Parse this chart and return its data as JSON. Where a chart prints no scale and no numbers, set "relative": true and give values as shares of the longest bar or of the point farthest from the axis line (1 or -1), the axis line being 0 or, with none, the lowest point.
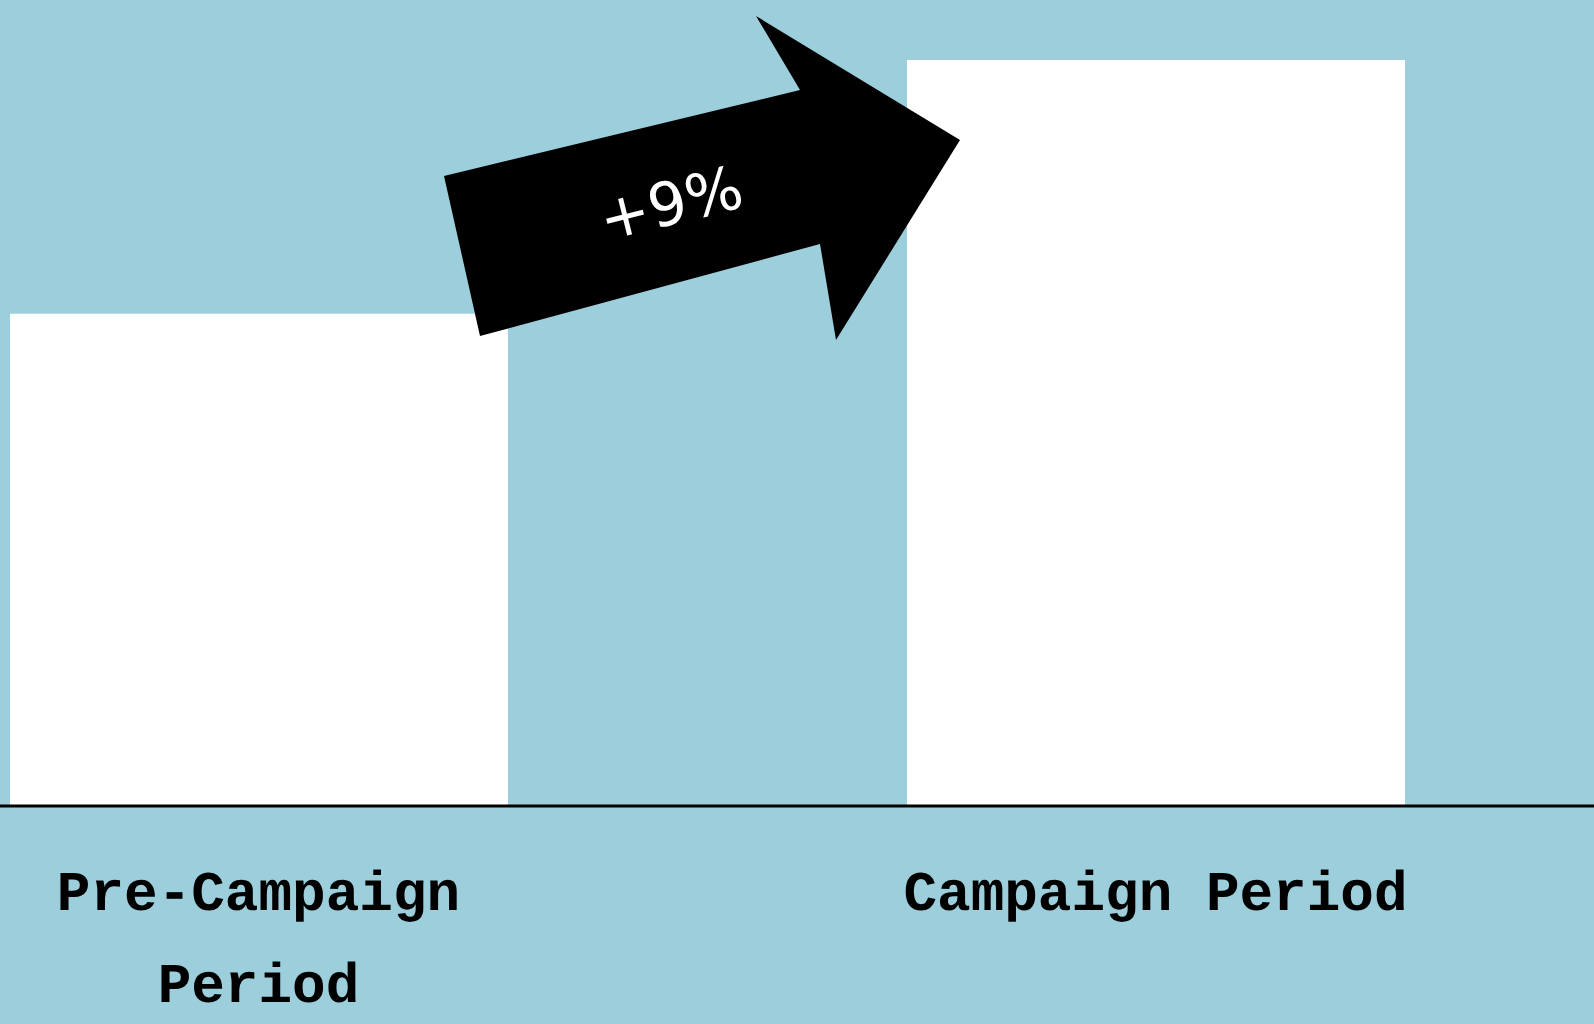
{
  "chart_data": {
    "type": "bar",
    "relative": true,
    "categories": [
      "Pre-Campaign Period",
      "Campaign Period"
    ],
    "values": [
      0.66,
      1
    ],
    "color": "#ffffff",
    "annotations": [
      "+9%"
    ],
    "grid": false,
    "legend": false
  }
}
